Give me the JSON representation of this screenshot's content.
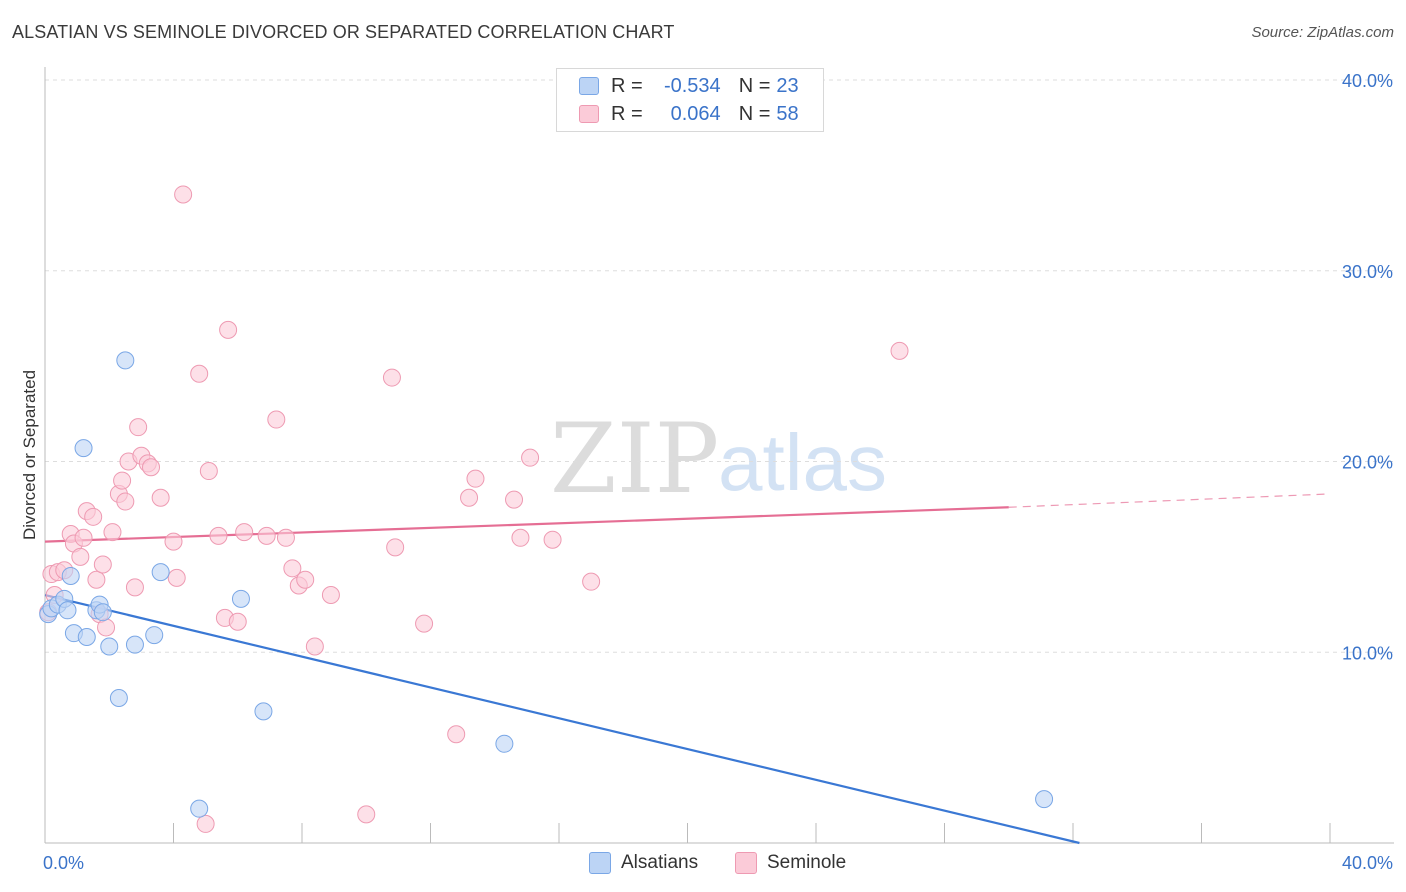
{
  "title": "ALSATIAN VS SEMINOLE DIVORCED OR SEPARATED CORRELATION CHART",
  "source": "Source: ZipAtlas.com",
  "watermark": {
    "zip": "ZIP",
    "atlas": "atlas"
  },
  "legend": {
    "series": [
      {
        "r_label": "R =",
        "r_value": "-0.534",
        "n_label": "N =",
        "n_value": "23"
      },
      {
        "r_label": "R =",
        "r_value": "0.064",
        "n_label": "N =",
        "n_value": "58"
      }
    ]
  },
  "bottom_legend": {
    "alsatians": "Alsatians",
    "seminole": "Seminole"
  },
  "colors": {
    "alsatians_fill": "#bcd4f5",
    "alsatians_stroke": "#7aa7e6",
    "alsatians_line": "#3a78d4",
    "seminole_fill": "#fbcbd8",
    "seminole_stroke": "#ee9ab2",
    "seminole_line": "#e56e94",
    "axis_text": "#3a73c9",
    "grid": "#dddddd"
  },
  "chart_data": {
    "type": "scatter",
    "title": "ALSATIAN VS SEMINOLE DIVORCED OR SEPARATED CORRELATION CHART",
    "xlabel": "",
    "ylabel": "Divorced or Separated",
    "xlim": [
      0,
      40
    ],
    "ylim": [
      0,
      40
    ],
    "x_tick_labels": [
      "0.0%",
      "40.0%"
    ],
    "y_ticks": [
      10,
      20,
      30,
      40
    ],
    "y_tick_labels": [
      "10.0%",
      "20.0%",
      "30.0%",
      "40.0%"
    ],
    "series": [
      {
        "name": "Alsatians",
        "points": [
          [
            0.1,
            12.0
          ],
          [
            0.2,
            12.3
          ],
          [
            0.4,
            12.5
          ],
          [
            0.6,
            12.8
          ],
          [
            0.7,
            12.2
          ],
          [
            0.8,
            14.0
          ],
          [
            0.9,
            11.0
          ],
          [
            1.2,
            20.7
          ],
          [
            1.3,
            10.8
          ],
          [
            1.6,
            12.2
          ],
          [
            1.7,
            12.5
          ],
          [
            2.0,
            10.3
          ],
          [
            2.3,
            7.6
          ],
          [
            2.5,
            25.3
          ],
          [
            2.8,
            10.4
          ],
          [
            3.4,
            10.9
          ],
          [
            3.6,
            14.2
          ],
          [
            4.8,
            1.8
          ],
          [
            6.1,
            12.8
          ],
          [
            6.8,
            6.9
          ],
          [
            14.3,
            5.2
          ],
          [
            31.1,
            2.3
          ],
          [
            1.8,
            12.1
          ]
        ],
        "trend": {
          "x": [
            0,
            32.2
          ],
          "y": [
            13.0,
            0.0
          ]
        }
      },
      {
        "name": "Seminole",
        "points": [
          [
            0.1,
            12.1
          ],
          [
            0.2,
            14.1
          ],
          [
            0.4,
            14.2
          ],
          [
            0.6,
            14.3
          ],
          [
            0.8,
            16.2
          ],
          [
            0.9,
            15.7
          ],
          [
            1.1,
            15.0
          ],
          [
            1.2,
            16.0
          ],
          [
            1.3,
            17.4
          ],
          [
            1.5,
            17.1
          ],
          [
            1.6,
            13.8
          ],
          [
            1.7,
            12.0
          ],
          [
            1.8,
            14.6
          ],
          [
            1.9,
            11.3
          ],
          [
            2.1,
            16.3
          ],
          [
            2.3,
            18.3
          ],
          [
            2.4,
            19.0
          ],
          [
            2.5,
            17.9
          ],
          [
            2.6,
            20.0
          ],
          [
            2.8,
            13.4
          ],
          [
            2.9,
            21.8
          ],
          [
            3.0,
            20.3
          ],
          [
            3.2,
            19.9
          ],
          [
            3.3,
            19.7
          ],
          [
            3.6,
            18.1
          ],
          [
            4.0,
            15.8
          ],
          [
            4.1,
            13.9
          ],
          [
            4.3,
            34.0
          ],
          [
            4.8,
            24.6
          ],
          [
            5.0,
            1.0
          ],
          [
            5.1,
            19.5
          ],
          [
            5.4,
            16.1
          ],
          [
            5.6,
            11.8
          ],
          [
            5.7,
            26.9
          ],
          [
            6.0,
            11.6
          ],
          [
            6.2,
            16.3
          ],
          [
            6.9,
            16.1
          ],
          [
            7.2,
            22.2
          ],
          [
            7.5,
            16.0
          ],
          [
            7.7,
            14.4
          ],
          [
            7.9,
            13.5
          ],
          [
            8.1,
            13.8
          ],
          [
            8.4,
            10.3
          ],
          [
            8.9,
            13.0
          ],
          [
            10.0,
            1.5
          ],
          [
            10.8,
            24.4
          ],
          [
            10.9,
            15.5
          ],
          [
            11.8,
            11.5
          ],
          [
            12.8,
            5.7
          ],
          [
            13.2,
            18.1
          ],
          [
            13.4,
            19.1
          ],
          [
            14.6,
            18.0
          ],
          [
            14.8,
            16.0
          ],
          [
            15.1,
            20.2
          ],
          [
            15.8,
            15.9
          ],
          [
            17.0,
            13.7
          ],
          [
            26.6,
            25.8
          ],
          [
            0.3,
            13.0
          ]
        ],
        "trend": {
          "x": [
            0,
            30
          ],
          "y": [
            15.8,
            17.6
          ]
        },
        "trend_extension": {
          "x": [
            30,
            40
          ],
          "y": [
            17.6,
            18.3
          ]
        }
      }
    ]
  }
}
